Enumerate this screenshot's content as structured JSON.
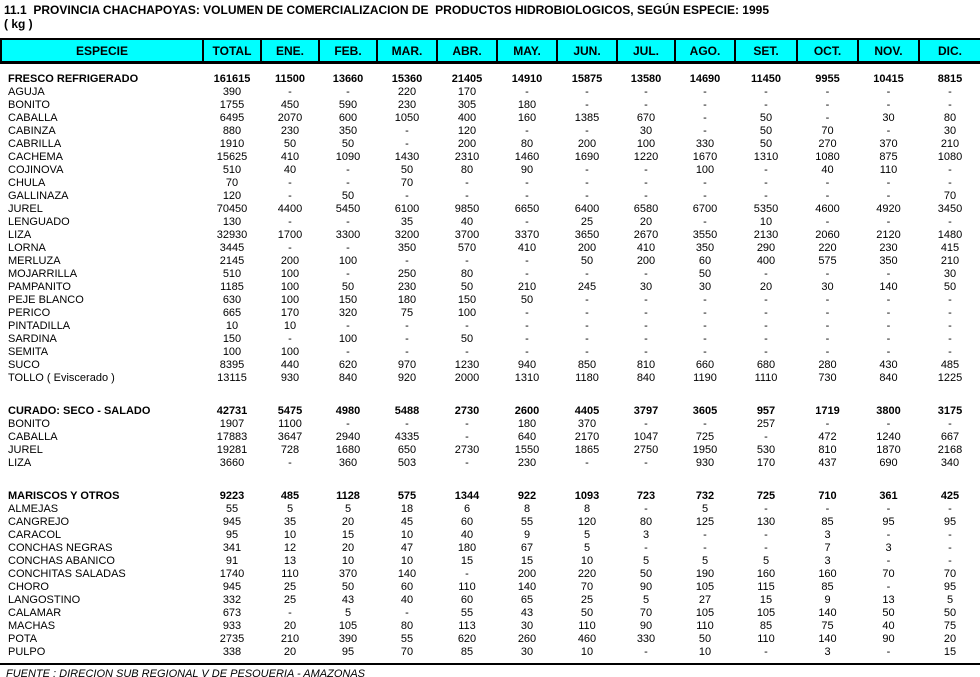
{
  "title": "11.1  PROVINCIA CHACHAPOYAS: VOLUMEN DE COMERCIALIZACION DE  PRODUCTOS HIDROBIOLOGICOS, SEGÚN ESPECIE: 1995",
  "subtitle": "( kg )",
  "source": "FUENTE : DIRECION SUB REGIONAL V DE PESQUERIA - AMAZONAS",
  "colors": {
    "header_bg": "#00FFFF",
    "text": "#000000",
    "border": "#000000",
    "page_bg": "#FFFFFF"
  },
  "table": {
    "columns": [
      "ESPECIE",
      "TOTAL",
      "ENE.",
      "FEB.",
      "MAR.",
      "ABR.",
      "MAY.",
      "JUN.",
      "JUL.",
      "AGO.",
      "SET.",
      "OCT.",
      "NOV.",
      "DIC."
    ],
    "sections": [
      {
        "header": {
          "especie": "FRESCO REFRIGERADO",
          "values": [
            "161615",
            "11500",
            "13660",
            "15360",
            "21405",
            "14910",
            "15875",
            "13580",
            "14690",
            "11450",
            "9955",
            "10415",
            "8815"
          ]
        },
        "rows": [
          {
            "especie": "AGUJA",
            "values": [
              "390",
              "-",
              "-",
              "220",
              "170",
              "-",
              "-",
              "-",
              "-",
              "-",
              "-",
              "-",
              "-"
            ]
          },
          {
            "especie": "BONITO",
            "values": [
              "1755",
              "450",
              "590",
              "230",
              "305",
              "180",
              "-",
              "-",
              "-",
              "-",
              "-",
              "-",
              "-"
            ]
          },
          {
            "especie": "CABALLA",
            "values": [
              "6495",
              "2070",
              "600",
              "1050",
              "400",
              "160",
              "1385",
              "670",
              "-",
              "50",
              "-",
              "30",
              "80"
            ]
          },
          {
            "especie": "CABINZA",
            "values": [
              "880",
              "230",
              "350",
              "-",
              "120",
              "-",
              "-",
              "30",
              "-",
              "50",
              "70",
              "-",
              "30"
            ]
          },
          {
            "especie": "CABRILLA",
            "values": [
              "1910",
              "50",
              "50",
              "-",
              "200",
              "80",
              "200",
              "100",
              "330",
              "50",
              "270",
              "370",
              "210"
            ]
          },
          {
            "especie": "CACHEMA",
            "values": [
              "15625",
              "410",
              "1090",
              "1430",
              "2310",
              "1460",
              "1690",
              "1220",
              "1670",
              "1310",
              "1080",
              "875",
              "1080"
            ]
          },
          {
            "especie": "COJINOVA",
            "values": [
              "510",
              "40",
              "-",
              "50",
              "80",
              "90",
              "-",
              "-",
              "100",
              "-",
              "40",
              "110",
              "-"
            ]
          },
          {
            "especie": "CHULA",
            "values": [
              "70",
              "-",
              "-",
              "70",
              "-",
              "-",
              "-",
              "-",
              "-",
              "-",
              "-",
              "-",
              "-"
            ]
          },
          {
            "especie": "GALLINAZA",
            "values": [
              "120",
              "-",
              "50",
              "-",
              "-",
              "-",
              "-",
              "-",
              "-",
              "-",
              "-",
              "-",
              "70"
            ]
          },
          {
            "especie": "JUREL",
            "values": [
              "70450",
              "4400",
              "5450",
              "6100",
              "9850",
              "6650",
              "6400",
              "6580",
              "6700",
              "5350",
              "4600",
              "4920",
              "3450"
            ]
          },
          {
            "especie": "LENGUADO",
            "values": [
              "130",
              "-",
              "-",
              "35",
              "40",
              "-",
              "25",
              "20",
              "-",
              "10",
              "-",
              "-",
              "-"
            ]
          },
          {
            "especie": "LIZA",
            "values": [
              "32930",
              "1700",
              "3300",
              "3200",
              "3700",
              "3370",
              "3650",
              "2670",
              "3550",
              "2130",
              "2060",
              "2120",
              "1480"
            ]
          },
          {
            "especie": "LORNA",
            "values": [
              "3445",
              "-",
              "-",
              "350",
              "570",
              "410",
              "200",
              "410",
              "350",
              "290",
              "220",
              "230",
              "415"
            ]
          },
          {
            "especie": "MERLUZA",
            "values": [
              "2145",
              "200",
              "100",
              "-",
              "-",
              "-",
              "50",
              "200",
              "60",
              "400",
              "575",
              "350",
              "210"
            ]
          },
          {
            "especie": "MOJARRILLA",
            "values": [
              "510",
              "100",
              "-",
              "250",
              "80",
              "-",
              "-",
              "-",
              "50",
              "-",
              "-",
              "-",
              "30"
            ]
          },
          {
            "especie": "PAMPANITO",
            "values": [
              "1185",
              "100",
              "50",
              "230",
              "50",
              "210",
              "245",
              "30",
              "30",
              "20",
              "30",
              "140",
              "50"
            ]
          },
          {
            "especie": "PEJE BLANCO",
            "values": [
              "630",
              "100",
              "150",
              "180",
              "150",
              "50",
              "-",
              "-",
              "-",
              "-",
              "-",
              "-",
              "-"
            ]
          },
          {
            "especie": "PERICO",
            "values": [
              "665",
              "170",
              "320",
              "75",
              "100",
              "-",
              "-",
              "-",
              "-",
              "-",
              "-",
              "-",
              "-"
            ]
          },
          {
            "especie": "PINTADILLA",
            "values": [
              "10",
              "10",
              "-",
              "-",
              "-",
              "-",
              "-",
              "-",
              "-",
              "-",
              "-",
              "-",
              "-"
            ]
          },
          {
            "especie": "SARDINA",
            "values": [
              "150",
              "-",
              "100",
              "-",
              "50",
              "-",
              "-",
              "-",
              "-",
              "-",
              "-",
              "-",
              "-"
            ]
          },
          {
            "especie": "SEMITA",
            "values": [
              "100",
              "100",
              "-",
              "-",
              "-",
              "-",
              "-",
              "-",
              "-",
              "-",
              "-",
              "-",
              "-"
            ]
          },
          {
            "especie": "SUCO",
            "values": [
              "8395",
              "440",
              "620",
              "970",
              "1230",
              "940",
              "850",
              "810",
              "660",
              "680",
              "280",
              "430",
              "485"
            ]
          },
          {
            "especie": "TOLLO ( Eviscerado )",
            "values": [
              "13115",
              "930",
              "840",
              "920",
              "2000",
              "1310",
              "1180",
              "840",
              "1190",
              "1110",
              "730",
              "840",
              "1225"
            ]
          }
        ]
      },
      {
        "header": {
          "especie": "CURADO: SECO - SALADO",
          "values": [
            "42731",
            "5475",
            "4980",
            "5488",
            "2730",
            "2600",
            "4405",
            "3797",
            "3605",
            "957",
            "1719",
            "3800",
            "3175"
          ]
        },
        "rows": [
          {
            "especie": "BONITO",
            "values": [
              "1907",
              "1100",
              "-",
              "-",
              "-",
              "180",
              "370",
              "-",
              "-",
              "257",
              "-",
              "-",
              "-"
            ]
          },
          {
            "especie": "CABALLA",
            "values": [
              "17883",
              "3647",
              "2940",
              "4335",
              "-",
              "640",
              "2170",
              "1047",
              "725",
              "-",
              "472",
              "1240",
              "667"
            ]
          },
          {
            "especie": "JUREL",
            "values": [
              "19281",
              "728",
              "1680",
              "650",
              "2730",
              "1550",
              "1865",
              "2750",
              "1950",
              "530",
              "810",
              "1870",
              "2168"
            ]
          },
          {
            "especie": "LIZA",
            "values": [
              "3660",
              "-",
              "360",
              "503",
              "-",
              "230",
              "-",
              "-",
              "930",
              "170",
              "437",
              "690",
              "340"
            ]
          }
        ]
      },
      {
        "header": {
          "especie": "MARISCOS Y OTROS",
          "values": [
            "9223",
            "485",
            "1128",
            "575",
            "1344",
            "922",
            "1093",
            "723",
            "732",
            "725",
            "710",
            "361",
            "425"
          ]
        },
        "rows": [
          {
            "especie": "ALMEJAS",
            "values": [
              "55",
              "5",
              "5",
              "18",
              "6",
              "8",
              "8",
              "-",
              "5",
              "-",
              "-",
              "-",
              "-"
            ]
          },
          {
            "especie": "CANGREJO",
            "values": [
              "945",
              "35",
              "20",
              "45",
              "60",
              "55",
              "120",
              "80",
              "125",
              "130",
              "85",
              "95",
              "95"
            ]
          },
          {
            "especie": "CARACOL",
            "values": [
              "95",
              "10",
              "15",
              "10",
              "40",
              "9",
              "5",
              "3",
              "-",
              "-",
              "3",
              "-",
              "-"
            ]
          },
          {
            "especie": "CONCHAS NEGRAS",
            "values": [
              "341",
              "12",
              "20",
              "47",
              "180",
              "67",
              "5",
              "-",
              "-",
              "-",
              "7",
              "3",
              "-"
            ]
          },
          {
            "especie": "CONCHAS ABANICO",
            "values": [
              "91",
              "13",
              "10",
              "10",
              "15",
              "15",
              "10",
              "5",
              "5",
              "5",
              "3",
              "-",
              "-"
            ]
          },
          {
            "especie": "CONCHITAS SALADAS",
            "values": [
              "1740",
              "110",
              "370",
              "140",
              "-",
              "200",
              "220",
              "50",
              "190",
              "160",
              "160",
              "70",
              "70"
            ]
          },
          {
            "especie": "CHORO",
            "values": [
              "945",
              "25",
              "50",
              "60",
              "110",
              "140",
              "70",
              "90",
              "105",
              "115",
              "85",
              "-",
              "95"
            ]
          },
          {
            "especie": "LANGOSTINO",
            "values": [
              "332",
              "25",
              "43",
              "40",
              "60",
              "65",
              "25",
              "5",
              "27",
              "15",
              "9",
              "13",
              "5"
            ]
          },
          {
            "especie": "CALAMAR",
            "values": [
              "673",
              "-",
              "5",
              "-",
              "55",
              "43",
              "50",
              "70",
              "105",
              "105",
              "140",
              "50",
              "50"
            ]
          },
          {
            "especie": "MACHAS",
            "values": [
              "933",
              "20",
              "105",
              "80",
              "113",
              "30",
              "110",
              "90",
              "110",
              "85",
              "75",
              "40",
              "75"
            ]
          },
          {
            "especie": "POTA",
            "values": [
              "2735",
              "210",
              "390",
              "55",
              "620",
              "260",
              "460",
              "330",
              "50",
              "110",
              "140",
              "90",
              "20"
            ]
          },
          {
            "especie": "PULPO",
            "values": [
              "338",
              "20",
              "95",
              "70",
              "85",
              "30",
              "10",
              "-",
              "10",
              "-",
              "3",
              "-",
              "15"
            ]
          }
        ]
      }
    ]
  }
}
